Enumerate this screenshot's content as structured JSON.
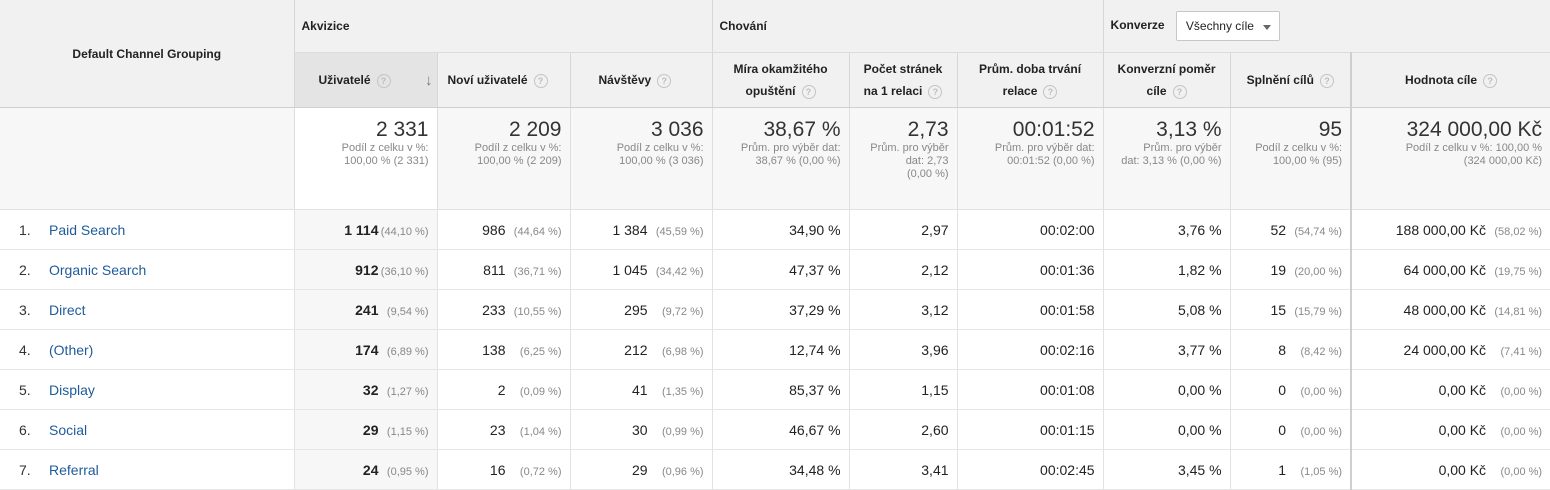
{
  "groups": {
    "dimension": "Default Channel Grouping",
    "acquisition": "Akvizice",
    "behavior": "Chování",
    "conversions": "Konverze",
    "goal_select": "Všechny cíle"
  },
  "columns": [
    {
      "label_l1": "Uživatelé",
      "label_l2": ""
    },
    {
      "label_l1": "Noví uživatelé",
      "label_l2": ""
    },
    {
      "label_l1": "Návštěvy",
      "label_l2": ""
    },
    {
      "label_l1": "Míra okamžitého",
      "label_l2": "opuštění"
    },
    {
      "label_l1": "Počet stránek",
      "label_l2": "na 1 relaci"
    },
    {
      "label_l1": "Prům. doba trvání",
      "label_l2": "relace"
    },
    {
      "label_l1": "Konverzní poměr",
      "label_l2": "cíle"
    },
    {
      "label_l1": "Splnění cílů",
      "label_l2": ""
    },
    {
      "label_l1": "Hodnota cíle",
      "label_l2": ""
    }
  ],
  "totals": [
    {
      "value": "2 331",
      "sub1": "Podíl z celku v %:",
      "sub2": "100,00 % (2 331)",
      "sub3": ""
    },
    {
      "value": "2 209",
      "sub1": "Podíl z celku v %:",
      "sub2": "100,00 % (2 209)",
      "sub3": ""
    },
    {
      "value": "3 036",
      "sub1": "Podíl z celku v %:",
      "sub2": "100,00 % (3 036)",
      "sub3": ""
    },
    {
      "value": "38,67 %",
      "sub1": "Prům. pro výběr dat:",
      "sub2": "38,67 % (0,00 %)",
      "sub3": ""
    },
    {
      "value": "2,73",
      "sub1": "Prům. pro výběr",
      "sub2": "dat: 2,73",
      "sub3": "(0,00 %)"
    },
    {
      "value": "00:01:52",
      "sub1": "Prům. pro výběr dat:",
      "sub2": "00:01:52 (0,00 %)",
      "sub3": ""
    },
    {
      "value": "3,13 %",
      "sub1": "Prům. pro výběr",
      "sub2": "dat: 3,13 % (0,00 %)",
      "sub3": ""
    },
    {
      "value": "95",
      "sub1": "Podíl z celku v %:",
      "sub2": "100,00 % (95)",
      "sub3": ""
    },
    {
      "value": "324 000,00 Kč",
      "sub1": "Podíl z celku v %: 100,00 %",
      "sub2": "(324 000,00 Kč)",
      "sub3": ""
    }
  ],
  "rows": [
    {
      "idx": "1.",
      "name": "Paid Search",
      "users": "1 114",
      "users_pct": "(44,10 %)",
      "new_users": "986",
      "new_users_pct": "(44,64 %)",
      "sessions": "1 384",
      "sessions_pct": "(45,59 %)",
      "bounce": "34,90 %",
      "pages": "2,97",
      "duration": "00:02:00",
      "conv_rate": "3,76 %",
      "goals": "52",
      "goals_pct": "(54,74 %)",
      "value": "188 000,00 Kč",
      "value_pct": "(58,02 %)"
    },
    {
      "idx": "2.",
      "name": "Organic Search",
      "users": "912",
      "users_pct": "(36,10 %)",
      "new_users": "811",
      "new_users_pct": "(36,71 %)",
      "sessions": "1 045",
      "sessions_pct": "(34,42 %)",
      "bounce": "47,37 %",
      "pages": "2,12",
      "duration": "00:01:36",
      "conv_rate": "1,82 %",
      "goals": "19",
      "goals_pct": "(20,00 %)",
      "value": "64 000,00 Kč",
      "value_pct": "(19,75 %)"
    },
    {
      "idx": "3.",
      "name": "Direct",
      "users": "241",
      "users_pct": "(9,54 %)",
      "new_users": "233",
      "new_users_pct": "(10,55 %)",
      "sessions": "295",
      "sessions_pct": "(9,72 %)",
      "bounce": "37,29 %",
      "pages": "3,12",
      "duration": "00:01:58",
      "conv_rate": "5,08 %",
      "goals": "15",
      "goals_pct": "(15,79 %)",
      "value": "48 000,00 Kč",
      "value_pct": "(14,81 %)"
    },
    {
      "idx": "4.",
      "name": "(Other)",
      "users": "174",
      "users_pct": "(6,89 %)",
      "new_users": "138",
      "new_users_pct": "(6,25 %)",
      "sessions": "212",
      "sessions_pct": "(6,98 %)",
      "bounce": "12,74 %",
      "pages": "3,96",
      "duration": "00:02:16",
      "conv_rate": "3,77 %",
      "goals": "8",
      "goals_pct": "(8,42 %)",
      "value": "24 000,00 Kč",
      "value_pct": "(7,41 %)"
    },
    {
      "idx": "5.",
      "name": "Display",
      "users": "32",
      "users_pct": "(1,27 %)",
      "new_users": "2",
      "new_users_pct": "(0,09 %)",
      "sessions": "41",
      "sessions_pct": "(1,35 %)",
      "bounce": "85,37 %",
      "pages": "1,15",
      "duration": "00:01:08",
      "conv_rate": "0,00 %",
      "goals": "0",
      "goals_pct": "(0,00 %)",
      "value": "0,00 Kč",
      "value_pct": "(0,00 %)"
    },
    {
      "idx": "6.",
      "name": "Social",
      "users": "29",
      "users_pct": "(1,15 %)",
      "new_users": "23",
      "new_users_pct": "(1,04 %)",
      "sessions": "30",
      "sessions_pct": "(0,99 %)",
      "bounce": "46,67 %",
      "pages": "2,60",
      "duration": "00:01:15",
      "conv_rate": "0,00 %",
      "goals": "0",
      "goals_pct": "(0,00 %)",
      "value": "0,00 Kč",
      "value_pct": "(0,00 %)"
    },
    {
      "idx": "7.",
      "name": "Referral",
      "users": "24",
      "users_pct": "(0,95 %)",
      "new_users": "16",
      "new_users_pct": "(0,72 %)",
      "sessions": "29",
      "sessions_pct": "(0,96 %)",
      "bounce": "34,48 %",
      "pages": "3,41",
      "duration": "00:02:45",
      "conv_rate": "3,45 %",
      "goals": "1",
      "goals_pct": "(1,05 %)",
      "value": "0,00 Kč",
      "value_pct": "(0,00 %)"
    }
  ],
  "icons": {
    "help": "?",
    "sort_arrow": "↓"
  }
}
